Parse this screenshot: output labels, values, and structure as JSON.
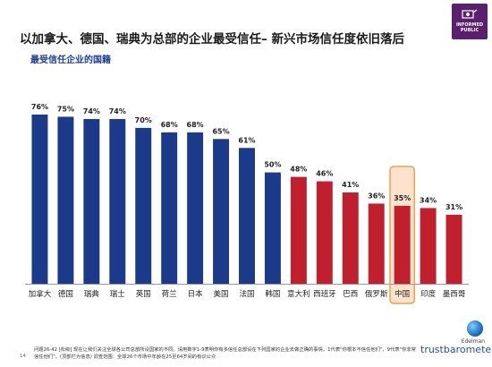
{
  "title": "以加拿大、德国、瑞典为总部的企业最受信任– 新兴市场信任度依旧落后",
  "subtitle": "最受信任企业的国籍",
  "badge": {
    "icon": "informed-public-icon",
    "text": "INFORMED PUBLIC"
  },
  "colors": {
    "navy": "#1b3a8a",
    "red": "#c0202d",
    "highlight_fill": "#fde3cc",
    "highlight_border": "#f0a050"
  },
  "chart_data": {
    "type": "bar",
    "categories": [
      "加拿大",
      "德国",
      "瑞典",
      "瑞士",
      "英国",
      "荷兰",
      "日本",
      "美国",
      "法国",
      "韩国",
      "意大利",
      "西班牙",
      "巴西",
      "俄罗斯",
      "中国",
      "印度",
      "墨西哥"
    ],
    "values": [
      76,
      75,
      74,
      74,
      70,
      68,
      68,
      65,
      61,
      50,
      48,
      46,
      41,
      36,
      35,
      34,
      31
    ],
    "value_labels": [
      "76%",
      "75%",
      "74%",
      "74%",
      "70%",
      "68%",
      "68%",
      "65%",
      "61%",
      "50%",
      "48%",
      "46%",
      "41%",
      "36%",
      "35%",
      "34%",
      "31%"
    ],
    "series_colors": [
      "navy",
      "navy",
      "navy",
      "navy",
      "navy",
      "navy",
      "navy",
      "navy",
      "navy",
      "navy",
      "red",
      "red",
      "red",
      "red",
      "red",
      "red",
      "red"
    ],
    "highlight_category": "中国",
    "ylim": [
      0,
      80
    ],
    "grid": false,
    "xlabel": "",
    "ylabel": ""
  },
  "footnote": "问题26-42 [松级] 现在让我们关注全球各公司总部所设国家的不同。请用数字1-9表明你有多信任总部设在下列国家的企业去做正确的事情，1代表\"你根本不信任他们\"，9代表\"你非常信任他们\"。(顶部栏为信息) 调查范围：全球26个市场中年龄在25至64岁间的有识公众",
  "page_number": "14",
  "brand": {
    "top": "Edelman",
    "name": "trustbarometer"
  }
}
